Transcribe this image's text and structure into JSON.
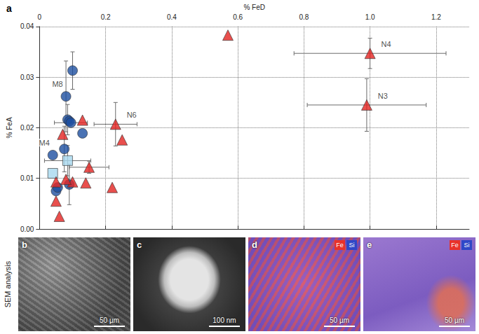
{
  "chart_data": {
    "type": "scatter",
    "panel": "a",
    "xlabel": "% FeD",
    "ylabel": "% FeA",
    "xlim": [
      0,
      1.3
    ],
    "xticks": [
      0,
      0.2,
      0.4,
      0.6,
      0.8,
      {
        "value": 1,
        "label": "1.0"
      },
      1.2
    ],
    "ylim": [
      0,
      0.04
    ],
    "yticks": [
      {
        "value": 0,
        "label": "0.00"
      },
      0.01,
      0.02,
      0.03,
      {
        "value": 0.04,
        "label": "0.04"
      }
    ],
    "grid": true,
    "series": [
      {
        "color": "#1d4fa0",
        "marker": "circle",
        "x": [
          0.1,
          0.08,
          0.085,
          0.09,
          0.095,
          0.13,
          0.075,
          0.04,
          0.09,
          0.05,
          0.055
        ],
        "y": [
          0.0313,
          0.0262,
          0.0216,
          0.0213,
          0.021,
          0.0189,
          0.0158,
          0.0146,
          0.0088,
          0.0075,
          0.0082
        ],
        "x_err": [
          null,
          null,
          null,
          null,
          0.05,
          null,
          null,
          null,
          null,
          null,
          null
        ],
        "y_err": [
          0.0037,
          0.007,
          0.003,
          null,
          null,
          null,
          0.0045,
          null,
          0.004,
          null,
          null
        ],
        "point_labels": [
          null,
          "M8",
          null,
          null,
          null,
          null,
          null,
          "M4",
          null,
          null,
          null
        ]
      },
      {
        "color": "#a8d8ef",
        "marker": "square",
        "x": [
          0.04,
          0.085
        ],
        "y": [
          0.011,
          0.0135
        ],
        "x_err": [
          null,
          0.07
        ],
        "y_err": [
          null,
          0.003
        ],
        "point_labels": [
          null,
          null
        ]
      },
      {
        "color": "#e42320",
        "marker": "triangle",
        "x": [
          0.57,
          1.0,
          0.99,
          0.23,
          0.25,
          0.13,
          0.07,
          0.15,
          0.05,
          0.1,
          0.14,
          0.22,
          0.05,
          0.06,
          0.08
        ],
        "y": [
          0.0383,
          0.0347,
          0.0245,
          0.0207,
          0.0176,
          0.0215,
          0.0187,
          0.0122,
          0.0093,
          0.0093,
          0.0091,
          0.0082,
          0.0055,
          0.0025,
          0.0098
        ],
        "x_err": [
          null,
          0.23,
          0.18,
          0.065,
          null,
          null,
          null,
          0.06,
          null,
          null,
          null,
          null,
          null,
          null,
          null
        ],
        "y_err": [
          null,
          0.003,
          0.0052,
          0.0043,
          null,
          null,
          null,
          0.0012,
          null,
          null,
          null,
          null,
          null,
          null,
          null
        ],
        "point_labels": [
          null,
          "N4",
          "N3",
          "N6",
          null,
          null,
          null,
          null,
          null,
          null,
          null,
          null,
          null,
          null,
          null
        ]
      }
    ]
  },
  "sem_panels": {
    "row_label": "SEM analysis",
    "images": [
      {
        "label": "b",
        "scale_bar": "50 µm",
        "elements": []
      },
      {
        "label": "c",
        "scale_bar": "100 nm",
        "elements": []
      },
      {
        "label": "d",
        "scale_bar": "50 µm",
        "elements": [
          {
            "name": "Fe",
            "color": "#e8322a"
          },
          {
            "name": "Si",
            "color": "#2f47c7"
          }
        ]
      },
      {
        "label": "e",
        "scale_bar": "50 µm",
        "elements": [
          {
            "name": "Fe",
            "color": "#e8322a"
          },
          {
            "name": "Si",
            "color": "#2f47c7"
          }
        ]
      }
    ]
  }
}
